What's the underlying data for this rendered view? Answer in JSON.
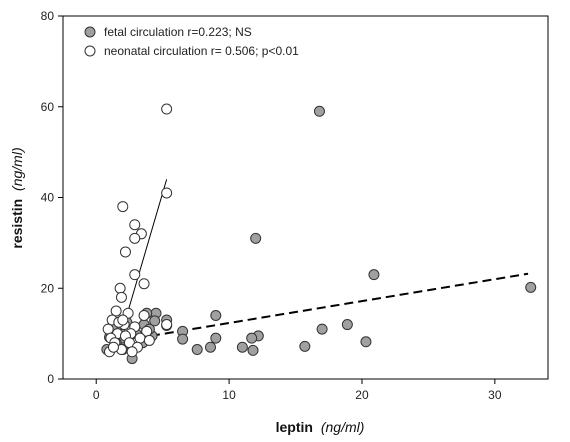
{
  "chart_data": {
    "type": "scatter",
    "title": "",
    "xlabel": "leptin",
    "xlabel_unit": "(ng/ml)",
    "ylabel": "resistin",
    "ylabel_unit": "(ng/ml)",
    "xlim": [
      -2.5,
      34
    ],
    "ylim": [
      0,
      80
    ],
    "xticks": [
      0,
      10,
      20,
      30
    ],
    "yticks": [
      0,
      20,
      40,
      60,
      80
    ],
    "grid": false,
    "legend_position": "top-left",
    "series": [
      {
        "name": "fetal circulation r=0.223; NS",
        "marker": "filled-circle",
        "color": "#a0a0a0",
        "trendline": {
          "style": "dashed",
          "x": [
            1.0,
            32.5
          ],
          "y": [
            8.0,
            23.2
          ]
        },
        "points": [
          [
            16.8,
            59.0
          ],
          [
            12.0,
            31.0
          ],
          [
            20.9,
            23.0
          ],
          [
            32.7,
            20.2
          ],
          [
            17.0,
            11.0
          ],
          [
            18.9,
            12.0
          ],
          [
            20.3,
            8.2
          ],
          [
            15.7,
            7.2
          ],
          [
            12.2,
            9.5
          ],
          [
            11.7,
            9.0
          ],
          [
            11.0,
            7.0
          ],
          [
            11.8,
            6.3
          ],
          [
            9.0,
            14.0
          ],
          [
            9.0,
            9.0
          ],
          [
            8.6,
            7.0
          ],
          [
            7.6,
            6.5
          ],
          [
            6.5,
            10.5
          ],
          [
            6.5,
            8.8
          ],
          [
            5.3,
            13.0
          ],
          [
            5.3,
            11.8
          ],
          [
            4.5,
            14.5
          ],
          [
            4.4,
            12.8
          ],
          [
            4.2,
            9.5
          ],
          [
            3.8,
            14.5
          ],
          [
            3.8,
            10.5
          ],
          [
            3.6,
            12.0
          ],
          [
            3.4,
            8.5
          ],
          [
            3.0,
            10.0
          ],
          [
            2.5,
            9.5
          ],
          [
            2.3,
            12.5
          ],
          [
            2.2,
            7.5
          ],
          [
            2.0,
            6.5
          ],
          [
            1.9,
            9.0
          ],
          [
            1.8,
            11.2
          ],
          [
            1.5,
            10.8
          ],
          [
            1.5,
            8.0
          ],
          [
            1.2,
            11.5
          ],
          [
            1.0,
            9.2
          ],
          [
            0.8,
            6.5
          ],
          [
            2.7,
            4.5
          ],
          [
            3.5,
            8.0
          ],
          [
            4.0,
            11.0
          ]
        ]
      },
      {
        "name": "neonatal circulation r= 0.506; p<0.01",
        "marker": "open-circle",
        "color": "#ffffff",
        "trendline": {
          "style": "solid",
          "x": [
            1.5,
            5.3
          ],
          "y": [
            6.0,
            44.0
          ]
        },
        "points": [
          [
            5.3,
            59.5
          ],
          [
            5.3,
            41.0
          ],
          [
            2.0,
            38.0
          ],
          [
            2.9,
            34.0
          ],
          [
            3.4,
            32.0
          ],
          [
            2.9,
            31.0
          ],
          [
            2.2,
            28.0
          ],
          [
            2.9,
            23.0
          ],
          [
            3.6,
            21.0
          ],
          [
            1.8,
            20.0
          ],
          [
            1.9,
            18.0
          ],
          [
            1.5,
            15.0
          ],
          [
            2.4,
            14.5
          ],
          [
            3.6,
            14.0
          ],
          [
            1.2,
            13.0
          ],
          [
            2.1,
            12.0
          ],
          [
            2.9,
            11.5
          ],
          [
            1.7,
            12.5
          ],
          [
            0.9,
            11.0
          ],
          [
            1.6,
            10.0
          ],
          [
            2.6,
            10.0
          ],
          [
            3.8,
            10.5
          ],
          [
            1.1,
            9.0
          ],
          [
            2.2,
            9.5
          ],
          [
            1.4,
            8.0
          ],
          [
            2.5,
            8.0
          ],
          [
            3.3,
            9.0
          ],
          [
            1.0,
            6.0
          ],
          [
            1.9,
            6.5
          ],
          [
            3.1,
            7.0
          ],
          [
            4.0,
            8.5
          ],
          [
            2.7,
            6.0
          ],
          [
            1.3,
            7.0
          ],
          [
            2.0,
            13.0
          ],
          [
            5.3,
            12.0
          ]
        ]
      }
    ]
  }
}
